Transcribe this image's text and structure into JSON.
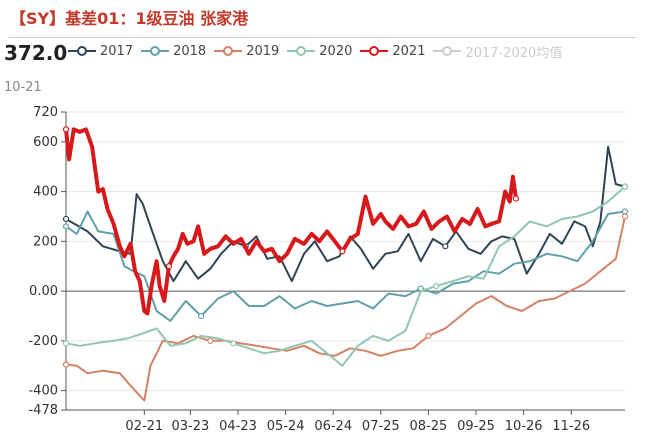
{
  "header": {
    "title": "【SY】基差01：1级豆油 张家港",
    "current_value": "372.0",
    "current_date": "10-21"
  },
  "legend": [
    {
      "label": "2017",
      "color": "#2f4554",
      "active": true
    },
    {
      "label": "2018",
      "color": "#61a0a8",
      "active": true
    },
    {
      "label": "2019",
      "color": "#d48265",
      "active": true
    },
    {
      "label": "2020",
      "color": "#91c7ae",
      "active": true
    },
    {
      "label": "2021",
      "color": "#d7191c",
      "active": true
    },
    {
      "label": "2017-2020均值",
      "color": "#cccccc",
      "active": false
    }
  ],
  "chart_data": {
    "type": "line",
    "title": "【SY】基差01：1级豆油 张家港",
    "x_tick_labels": [
      "02-21",
      "03-23",
      "04-23",
      "05-24",
      "06-24",
      "07-25",
      "08-25",
      "09-25",
      "10-26",
      "11-26"
    ],
    "y_tick_labels": [
      "720",
      "600",
      "400",
      "200",
      "0.00",
      "-200",
      "-400",
      "-478"
    ],
    "ylim": [
      -478,
      720
    ],
    "x_domain": [
      "01-01",
      "12-31"
    ],
    "grid": "horizontal",
    "series": [
      {
        "name": "2017",
        "color": "#2f4554",
        "width": 2,
        "x": [
          "01-01",
          "01-15",
          "01-25",
          "02-05",
          "02-12",
          "02-16",
          "02-20",
          "02-25",
          "03-05",
          "03-12",
          "03-20",
          "03-28",
          "04-05",
          "04-12",
          "04-20",
          "04-28",
          "05-05",
          "05-12",
          "05-20",
          "05-28",
          "06-05",
          "06-12",
          "06-20",
          "06-28",
          "07-05",
          "07-12",
          "07-20",
          "07-28",
          "08-05",
          "08-12",
          "08-20",
          "08-28",
          "09-05",
          "09-12",
          "09-20",
          "09-28",
          "10-05",
          "10-12",
          "10-20",
          "10-28",
          "11-05",
          "11-12",
          "11-20",
          "11-28",
          "12-05",
          "12-10",
          "12-15",
          "12-20",
          "12-25",
          "12-31"
        ],
        "y": [
          290,
          240,
          180,
          160,
          150,
          390,
          350,
          260,
          120,
          40,
          120,
          50,
          90,
          150,
          200,
          180,
          220,
          130,
          140,
          40,
          150,
          200,
          120,
          140,
          220,
          170,
          90,
          150,
          160,
          230,
          120,
          210,
          180,
          240,
          170,
          150,
          200,
          220,
          210,
          70,
          150,
          230,
          190,
          280,
          260,
          180,
          280,
          580,
          430,
          420
        ]
      },
      {
        "name": "2018",
        "color": "#61a0a8",
        "width": 2,
        "x": [
          "01-01",
          "01-08",
          "01-15",
          "01-22",
          "02-01",
          "02-08",
          "02-14",
          "02-21",
          "03-01",
          "03-10",
          "03-20",
          "03-30",
          "04-10",
          "04-20",
          "04-30",
          "05-10",
          "05-20",
          "05-30",
          "06-10",
          "06-20",
          "06-30",
          "07-10",
          "07-20",
          "07-30",
          "08-10",
          "08-20",
          "08-30",
          "09-10",
          "09-20",
          "09-30",
          "10-10",
          "10-20",
          "10-30",
          "11-10",
          "11-20",
          "11-30",
          "12-10",
          "12-20",
          "12-31"
        ],
        "y": [
          260,
          230,
          320,
          240,
          230,
          100,
          80,
          60,
          -80,
          -120,
          -40,
          -100,
          -30,
          0,
          -60,
          -60,
          -20,
          -70,
          -40,
          -60,
          -50,
          -40,
          -70,
          -10,
          -20,
          10,
          -10,
          30,
          40,
          80,
          70,
          110,
          120,
          150,
          140,
          120,
          200,
          310,
          320
        ]
      },
      {
        "name": "2019",
        "color": "#d48265",
        "width": 2,
        "x": [
          "01-01",
          "01-08",
          "01-15",
          "01-25",
          "02-05",
          "02-12",
          "02-18",
          "02-21",
          "02-25",
          "03-05",
          "03-15",
          "03-25",
          "04-05",
          "04-15",
          "04-25",
          "05-05",
          "05-15",
          "05-25",
          "06-05",
          "06-15",
          "06-25",
          "07-05",
          "07-15",
          "07-25",
          "08-05",
          "08-15",
          "08-25",
          "09-05",
          "09-15",
          "09-25",
          "10-05",
          "10-15",
          "10-25",
          "11-05",
          "11-15",
          "11-25",
          "12-05",
          "12-15",
          "12-25",
          "12-31"
        ],
        "y": [
          -295,
          -300,
          -330,
          -320,
          -330,
          -380,
          -420,
          -440,
          -300,
          -200,
          -210,
          -180,
          -200,
          -200,
          -210,
          -220,
          -230,
          -240,
          -220,
          -250,
          -260,
          -230,
          -240,
          -260,
          -240,
          -230,
          -180,
          -150,
          -100,
          -50,
          -20,
          -60,
          -80,
          -40,
          -30,
          0,
          30,
          80,
          130,
          300
        ]
      },
      {
        "name": "2020",
        "color": "#91c7ae",
        "width": 2,
        "x": [
          "01-01",
          "01-10",
          "01-20",
          "02-01",
          "02-10",
          "02-20",
          "03-01",
          "03-10",
          "03-20",
          "03-30",
          "04-10",
          "04-20",
          "04-30",
          "05-10",
          "05-20",
          "05-30",
          "06-10",
          "06-20",
          "06-30",
          "07-10",
          "07-20",
          "07-30",
          "08-10",
          "08-20",
          "08-30",
          "09-10",
          "09-20",
          "09-30",
          "10-10",
          "10-20",
          "10-30",
          "11-10",
          "11-20",
          "11-30",
          "12-10",
          "12-20",
          "12-31"
        ],
        "y": [
          -210,
          -220,
          -210,
          -200,
          -190,
          -170,
          -150,
          -220,
          -210,
          -180,
          -190,
          -210,
          -230,
          -250,
          -240,
          -220,
          -200,
          -250,
          -300,
          -220,
          -180,
          -200,
          -160,
          0,
          20,
          40,
          60,
          50,
          180,
          220,
          280,
          260,
          290,
          300,
          320,
          360,
          420
        ]
      },
      {
        "name": "2021",
        "color": "#d7191c",
        "width": 4,
        "x": [
          "01-01",
          "01-03",
          "01-06",
          "01-10",
          "01-14",
          "01-18",
          "01-22",
          "01-25",
          "01-28",
          "02-01",
          "02-05",
          "02-08",
          "02-12",
          "02-15",
          "02-18",
          "02-21",
          "02-23",
          "02-26",
          "03-01",
          "03-03",
          "03-06",
          "03-09",
          "03-12",
          "03-15",
          "03-18",
          "03-21",
          "03-25",
          "03-28",
          "04-01",
          "04-05",
          "04-10",
          "04-15",
          "04-20",
          "04-25",
          "04-30",
          "05-05",
          "05-10",
          "05-15",
          "05-20",
          "05-25",
          "05-30",
          "06-05",
          "06-10",
          "06-15",
          "06-20",
          "06-25",
          "06-30",
          "07-05",
          "07-10",
          "07-15",
          "07-20",
          "07-25",
          "07-28",
          "08-02",
          "08-07",
          "08-12",
          "08-17",
          "08-22",
          "08-27",
          "09-01",
          "09-06",
          "09-11",
          "09-16",
          "09-21",
          "09-26",
          "10-01",
          "10-05",
          "10-10",
          "10-14",
          "10-17",
          "10-19",
          "10-21"
        ],
        "y": [
          650,
          530,
          650,
          640,
          650,
          580,
          400,
          410,
          330,
          270,
          180,
          140,
          190,
          80,
          40,
          -80,
          -90,
          30,
          120,
          20,
          -40,
          100,
          140,
          170,
          230,
          190,
          200,
          260,
          150,
          170,
          180,
          220,
          190,
          210,
          150,
          200,
          160,
          170,
          120,
          150,
          210,
          190,
          230,
          200,
          240,
          200,
          160,
          210,
          230,
          380,
          270,
          310,
          280,
          250,
          300,
          260,
          270,
          320,
          250,
          280,
          300,
          240,
          290,
          270,
          330,
          260,
          270,
          280,
          400,
          360,
          460,
          372
        ]
      }
    ]
  }
}
